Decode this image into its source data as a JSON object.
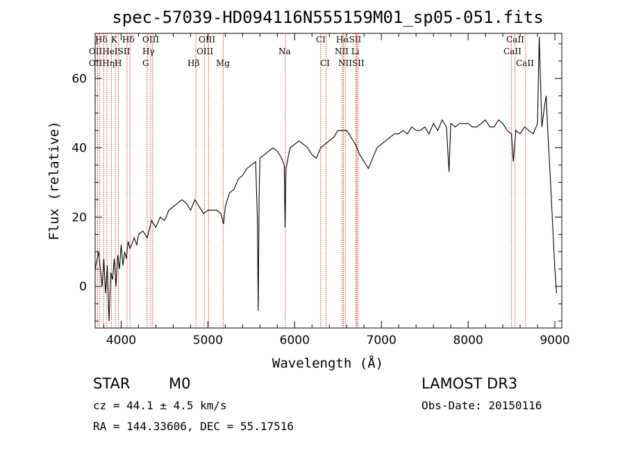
{
  "chart_data": {
    "type": "line",
    "title": "spec-57039-HD094116N555159M01_sp05-051.fits",
    "xlabel": "Wavelength (Å)",
    "ylabel": "Flux (relative)",
    "xlim": [
      3700,
      9080
    ],
    "ylim": [
      -12,
      73
    ],
    "xticks": [
      4000,
      5000,
      6000,
      7000,
      8000,
      9000
    ],
    "xtick_labels": [
      "4000",
      "5000",
      "6000",
      "7000",
      "8000",
      "9000"
    ],
    "yticks": [
      0,
      20,
      40,
      60
    ],
    "ytick_labels": [
      "0",
      "20",
      "40",
      "60"
    ],
    "grid": false,
    "line_color": "#000000",
    "marker_color": "#cc0000",
    "series": [
      {
        "x": [
          3700,
          3740,
          3780,
          3800,
          3820,
          3840,
          3860,
          3880,
          3900,
          3920,
          3940,
          3960,
          3980,
          4000,
          4020,
          4040,
          4060,
          4080,
          4100,
          4120,
          4150,
          4180,
          4200,
          4250,
          4300,
          4350,
          4400,
          4450,
          4500,
          4550,
          4600,
          4650,
          4700,
          4750,
          4800,
          4850,
          4900,
          4950,
          5000,
          5050,
          5100,
          5150,
          5180,
          5200,
          5250,
          5300,
          5350,
          5400,
          5450,
          5500,
          5550,
          5570,
          5580,
          5590,
          5600,
          5650,
          5700,
          5750,
          5800,
          5850,
          5880,
          5890,
          5900,
          5910,
          5930,
          5950,
          6000,
          6050,
          6100,
          6150,
          6200,
          6250,
          6300,
          6350,
          6400,
          6450,
          6500,
          6550,
          6600,
          6650,
          6700,
          6750,
          6800,
          6850,
          6900,
          6950,
          7000,
          7050,
          7100,
          7150,
          7200,
          7250,
          7300,
          7350,
          7400,
          7450,
          7500,
          7550,
          7600,
          7650,
          7700,
          7750,
          7780,
          7800,
          7850,
          7900,
          7950,
          8000,
          8050,
          8100,
          8150,
          8200,
          8250,
          8300,
          8350,
          8400,
          8450,
          8500,
          8520,
          8550,
          8600,
          8650,
          8700,
          8750,
          8800,
          8820,
          8850,
          8880,
          8900,
          8920,
          8950,
          8980,
          9000,
          9020
        ],
        "y": [
          5,
          10,
          0,
          8,
          -2,
          6,
          -10,
          4,
          2,
          8,
          0,
          9,
          5,
          12,
          6,
          10,
          8,
          13,
          11,
          12,
          14,
          12,
          15,
          16,
          14,
          19,
          17,
          20,
          19,
          22,
          23,
          24,
          25,
          24,
          22,
          25,
          23,
          21,
          22,
          22,
          22,
          21,
          18,
          23,
          27,
          28,
          31,
          32,
          34,
          35,
          36,
          20,
          -7,
          25,
          37,
          38,
          39,
          40,
          39,
          37,
          35,
          17,
          34,
          35,
          38,
          40,
          41,
          42,
          41,
          40,
          38,
          37,
          40,
          41,
          42,
          43,
          45,
          45,
          45,
          43,
          41,
          38,
          36,
          34,
          37,
          40,
          41,
          42,
          43,
          44,
          44,
          45,
          44,
          46,
          45,
          45,
          46,
          44,
          47,
          45,
          48,
          46,
          33,
          47,
          46,
          47,
          47,
          47,
          46,
          46,
          47,
          48,
          46,
          46,
          48,
          47,
          45,
          44,
          36,
          45,
          44,
          46,
          45,
          44,
          47,
          72,
          46,
          52,
          55,
          44,
          30,
          15,
          5,
          -2
        ]
      }
    ],
    "line_markers": {
      "top_row": [
        "Hδ",
        "K",
        "Hδ",
        "OIII",
        "OIII",
        "CI",
        "HαSII",
        "CaII"
      ],
      "middle_row": [
        "OIIHeISII",
        "Hγ",
        "OIII",
        "Na",
        "NII Li",
        "CaII"
      ],
      "bottom_row": [
        "OIIHηH",
        "G",
        "Hβ",
        "Mg",
        "CI",
        "NIISII",
        "CaII"
      ],
      "wavelengths": [
        3727,
        3750,
        3798,
        3835,
        3889,
        3934,
        3969,
        4068,
        4102,
        4300,
        4340,
        4363,
        4861,
        4959,
        5007,
        5175,
        5893,
        6300,
        6364,
        6548,
        6563,
        6583,
        6708,
        6717,
        6731,
        8498,
        8542,
        8662
      ]
    }
  },
  "info": {
    "object_class": "STAR",
    "subclass": "M0",
    "survey": "LAMOST DR3",
    "redshift": "cz = 44.1 ± 4.5 km/s",
    "obs_date": "Obs-Date: 20150116",
    "coords": "RA = 144.33606, DEC =  55.17516"
  }
}
